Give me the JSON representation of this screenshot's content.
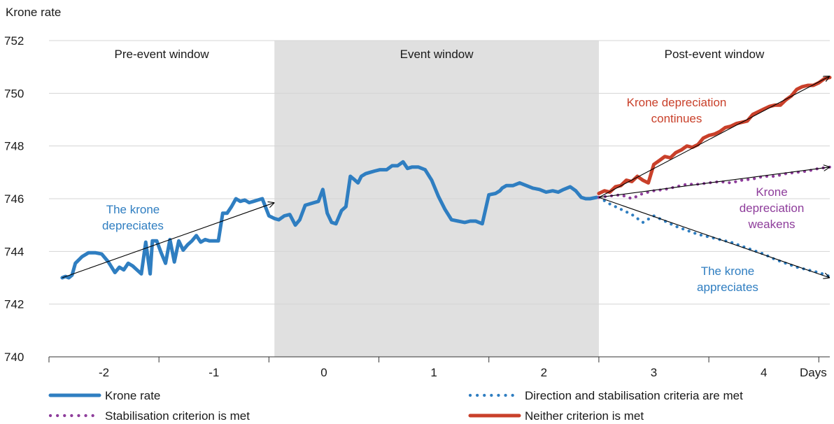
{
  "chart_data": {
    "type": "line",
    "ylabel": "Krone rate",
    "xlabel": "Days",
    "ylim": [
      740,
      752
    ],
    "yticks": [
      740,
      742,
      744,
      746,
      748,
      750,
      752
    ],
    "xlim": [
      -2.5,
      4.6
    ],
    "xticks": [
      -2,
      -1,
      0,
      1,
      2,
      3,
      4
    ],
    "xtick_labels": [
      "-2",
      "-1",
      "0",
      "1",
      "2",
      "3",
      "4"
    ],
    "grid": "horizontal",
    "windows": [
      {
        "label": "Pre-event window",
        "from": -2.5,
        "to": -0.45
      },
      {
        "label": "Event window",
        "from": -0.45,
        "to": 2.5,
        "shaded": true
      },
      {
        "label": "Post-event window",
        "from": 2.5,
        "to": 4.6
      }
    ],
    "series": [
      {
        "name": "Krone rate",
        "style": "solid",
        "color": "#2f7ec1",
        "x": [
          -2.38,
          -2.35,
          -2.32,
          -2.29,
          -2.26,
          -2.2,
          -2.14,
          -2.08,
          -2.02,
          -1.96,
          -1.9,
          -1.86,
          -1.82,
          -1.78,
          -1.74,
          -1.7,
          -1.66,
          -1.62,
          -1.58,
          -1.56,
          -1.52,
          -1.48,
          -1.44,
          -1.4,
          -1.36,
          -1.32,
          -1.28,
          -1.24,
          -1.2,
          -1.16,
          -1.12,
          -1.08,
          -1.04,
          -1.0,
          -0.96,
          -0.92,
          -0.88,
          -0.84,
          -0.8,
          -0.76,
          -0.72,
          -0.68,
          -0.64,
          -0.6,
          -0.56,
          -0.5,
          -0.45,
          -0.41,
          -0.36,
          -0.31,
          -0.26,
          -0.22,
          -0.17,
          -0.13,
          -0.09,
          -0.05,
          -0.01,
          0.03,
          0.07,
          0.11,
          0.16,
          0.2,
          0.24,
          0.27,
          0.31,
          0.34,
          0.38,
          0.42,
          0.46,
          0.51,
          0.57,
          0.62,
          0.67,
          0.72,
          0.76,
          0.8,
          0.86,
          0.92,
          0.98,
          1.04,
          1.1,
          1.16,
          1.22,
          1.28,
          1.33,
          1.38,
          1.44,
          1.5,
          1.56,
          1.6,
          1.62,
          1.66,
          1.72,
          1.78,
          1.84,
          1.9,
          1.96,
          2.02,
          2.08,
          2.13,
          2.18,
          2.24,
          2.29,
          2.34,
          2.38,
          2.42,
          2.48
        ],
        "y": [
          743.0,
          743.05,
          743.0,
          743.1,
          743.55,
          743.8,
          743.95,
          743.95,
          743.9,
          743.6,
          743.2,
          743.4,
          743.3,
          743.55,
          743.45,
          743.3,
          743.15,
          744.35,
          743.15,
          744.4,
          744.4,
          743.95,
          743.55,
          744.45,
          743.6,
          744.4,
          744.05,
          744.25,
          744.4,
          744.6,
          744.35,
          744.45,
          744.4,
          744.4,
          744.4,
          745.45,
          745.45,
          745.7,
          746.0,
          745.9,
          745.95,
          745.85,
          745.9,
          745.95,
          746.0,
          745.35,
          745.25,
          745.2,
          745.35,
          745.4,
          745.0,
          745.2,
          745.75,
          745.8,
          745.85,
          745.9,
          746.35,
          745.45,
          745.1,
          745.05,
          745.55,
          745.7,
          746.85,
          746.75,
          746.6,
          746.85,
          746.95,
          747.0,
          747.05,
          747.1,
          747.1,
          747.25,
          747.25,
          747.4,
          747.15,
          747.2,
          747.2,
          747.1,
          746.7,
          746.1,
          745.6,
          745.2,
          745.15,
          745.1,
          745.15,
          745.15,
          745.05,
          746.15,
          746.2,
          746.3,
          746.4,
          746.5,
          746.5,
          746.6,
          746.5,
          746.4,
          746.35,
          746.25,
          746.3,
          746.25,
          746.35,
          746.45,
          746.3,
          746.05,
          746.0,
          746.0,
          746.05
        ]
      },
      {
        "name": "Direction and stabilisation criteria are met",
        "style": "dotted",
        "color": "#2f7ec1",
        "x": [
          2.5,
          2.6,
          2.7,
          2.8,
          2.9,
          3.0,
          3.1,
          3.2,
          3.3,
          3.4,
          3.5,
          3.6,
          3.7,
          3.8,
          3.9,
          4.0,
          4.1,
          4.2,
          4.3,
          4.4,
          4.5,
          4.6
        ],
        "y": [
          746.05,
          745.8,
          745.6,
          745.4,
          745.1,
          745.35,
          745.15,
          744.95,
          744.8,
          744.65,
          744.55,
          744.45,
          744.35,
          744.2,
          744.05,
          743.9,
          743.7,
          743.55,
          743.4,
          743.3,
          743.2,
          743.05
        ]
      },
      {
        "name": "Stabilisation criterion is met",
        "style": "dotted",
        "color": "#8e3d9b",
        "x": [
          2.5,
          2.6,
          2.7,
          2.8,
          2.9,
          3.0,
          3.1,
          3.2,
          3.3,
          3.4,
          3.5,
          3.6,
          3.7,
          3.8,
          3.9,
          4.0,
          4.1,
          4.2,
          4.3,
          4.4,
          4.5,
          4.6
        ],
        "y": [
          746.05,
          746.1,
          746.15,
          746.0,
          746.2,
          746.3,
          746.35,
          746.45,
          746.55,
          746.55,
          746.6,
          746.65,
          746.6,
          746.7,
          746.75,
          746.85,
          746.85,
          746.95,
          747.0,
          747.05,
          747.15,
          747.2
        ]
      },
      {
        "name": "Neither criterion is met",
        "style": "solid",
        "color": "#c9402a",
        "x": [
          2.5,
          2.55,
          2.6,
          2.65,
          2.7,
          2.75,
          2.8,
          2.85,
          2.9,
          2.95,
          3.0,
          3.05,
          3.1,
          3.15,
          3.2,
          3.25,
          3.3,
          3.35,
          3.4,
          3.45,
          3.5,
          3.55,
          3.6,
          3.65,
          3.7,
          3.75,
          3.8,
          3.85,
          3.9,
          3.95,
          4.0,
          4.05,
          4.1,
          4.15,
          4.2,
          4.25,
          4.3,
          4.35,
          4.4,
          4.45,
          4.5,
          4.55,
          4.6
        ],
        "y": [
          746.2,
          746.3,
          746.25,
          746.45,
          746.5,
          746.7,
          746.65,
          746.85,
          746.7,
          746.6,
          747.3,
          747.45,
          747.6,
          747.55,
          747.75,
          747.85,
          748.0,
          747.95,
          748.05,
          748.3,
          748.4,
          748.45,
          748.55,
          748.7,
          748.75,
          748.85,
          748.9,
          748.95,
          749.2,
          749.3,
          749.4,
          749.5,
          749.55,
          749.55,
          749.75,
          749.9,
          750.15,
          750.25,
          750.3,
          750.3,
          750.4,
          750.55,
          750.6
        ]
      }
    ],
    "arrows": [
      {
        "from": [
          -2.38,
          743.0
        ],
        "to": [
          -0.45,
          745.85
        ],
        "color": "#000000"
      },
      {
        "from": [
          2.5,
          746.05
        ],
        "to": [
          4.6,
          750.65
        ],
        "color": "#000000"
      },
      {
        "from": [
          2.5,
          746.05
        ],
        "to": [
          4.6,
          747.2
        ],
        "color": "#000000"
      },
      {
        "from": [
          2.5,
          746.05
        ],
        "to": [
          4.6,
          743.0
        ],
        "color": "#000000"
      }
    ],
    "annotations": [
      {
        "lines": [
          "The krone",
          "depreciates"
        ],
        "color": "#2f7ec1"
      },
      {
        "lines": [
          "Krone depreciation",
          "continues"
        ],
        "color": "#c9402a"
      },
      {
        "lines": [
          "Krone",
          "depreciation",
          "weakens"
        ],
        "color": "#8e3d9b"
      },
      {
        "lines": [
          "The krone",
          "appreciates"
        ],
        "color": "#2f7ec1"
      }
    ],
    "legend": {
      "placement": "bottom",
      "items": [
        "Krone rate",
        "Direction and stabilisation criteria are met",
        "Stabilisation criterion is met",
        "Neither criterion is met"
      ]
    },
    "colors": {
      "krone": "#2f7ec1",
      "stabilisation": "#8e3d9b",
      "neither": "#c9402a",
      "event_shade": "#e0e0e0",
      "grid": "#d4d4d4"
    }
  }
}
